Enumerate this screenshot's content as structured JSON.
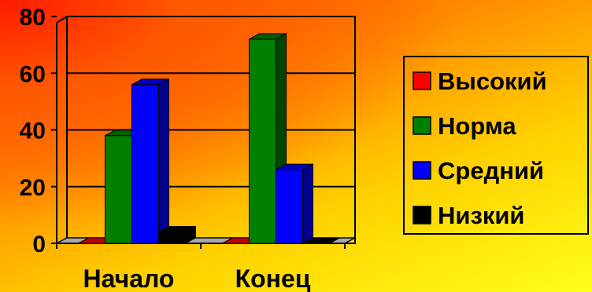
{
  "chart_data": {
    "type": "bar",
    "categories": [
      "Начало",
      "Конец"
    ],
    "series": [
      {
        "name": "Высокий",
        "values": [
          0,
          0
        ],
        "color": "#ff0000"
      },
      {
        "name": "Норма",
        "values": [
          38,
          72
        ],
        "color": "#008000"
      },
      {
        "name": "Средний",
        "values": [
          56,
          26
        ],
        "color": "#0000ff"
      },
      {
        "name": "Низкий",
        "values": [
          4,
          0
        ],
        "color": "#000000"
      }
    ],
    "yticks": [
      "0",
      "20",
      "40",
      "60",
      "80"
    ],
    "ylim": [
      0,
      80
    ],
    "grid": true,
    "legend_position": "right",
    "style": "3d-clustered"
  }
}
